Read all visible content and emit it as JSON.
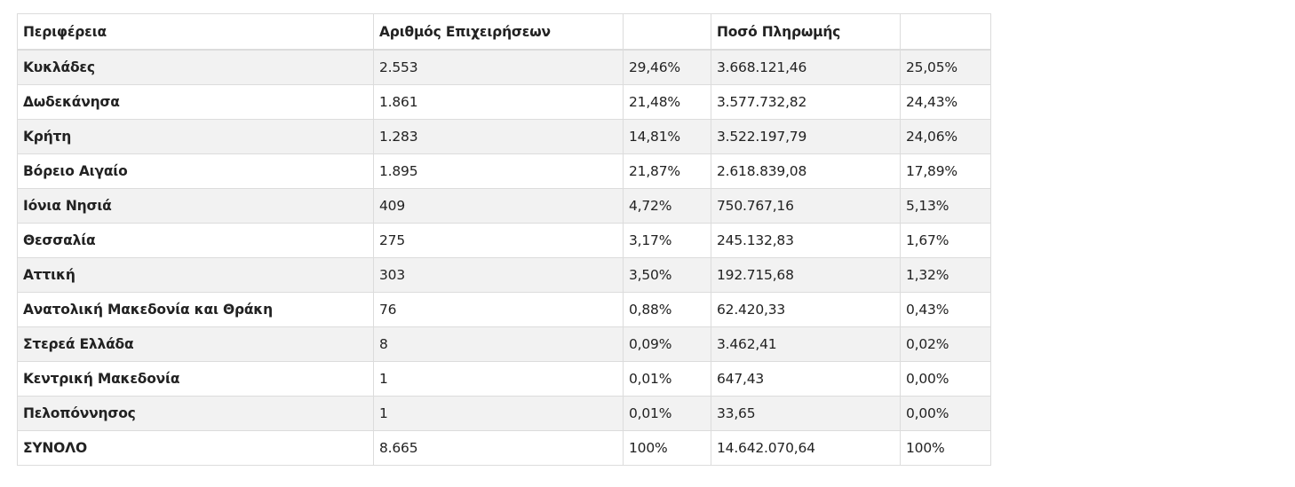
{
  "table": {
    "headers": [
      "Περιφέρεια",
      "Αριθμός Επιχειρήσεων",
      "",
      "Ποσό Πληρωμής",
      ""
    ],
    "rows": [
      [
        "Κυκλάδες",
        "2.553",
        "29,46%",
        "3.668.121,46",
        "25,05%"
      ],
      [
        "Δωδεκάνησα",
        "1.861",
        "21,48%",
        "3.577.732,82",
        "24,43%"
      ],
      [
        "Κρήτη",
        "1.283",
        "14,81%",
        "3.522.197,79",
        "24,06%"
      ],
      [
        "Βόρειο Αιγαίο",
        "1.895",
        "21,87%",
        "2.618.839,08",
        "17,89%"
      ],
      [
        "Ιόνια Νησιά",
        "409",
        "4,72%",
        "750.767,16",
        "5,13%"
      ],
      [
        "Θεσσαλία",
        "275",
        "3,17%",
        "245.132,83",
        "1,67%"
      ],
      [
        "Αττική",
        "303",
        "3,50%",
        "192.715,68",
        "1,32%"
      ],
      [
        "Ανατολική Μακεδονία και Θράκη",
        "76",
        "0,88%",
        "62.420,33",
        "0,43%"
      ],
      [
        "Στερεά Ελλάδα",
        "8",
        "0,09%",
        "3.462,41",
        "0,02%"
      ],
      [
        "Κεντρική Μακεδονία",
        "1",
        "0,01%",
        "647,43",
        "0,00%"
      ],
      [
        "Πελοπόννησος",
        "1",
        "0,01%",
        "33,65",
        "0,00%"
      ],
      [
        "ΣΥΝΟΛΟ",
        "8.665",
        "100%",
        "14.642.070,64",
        "100%"
      ]
    ]
  }
}
